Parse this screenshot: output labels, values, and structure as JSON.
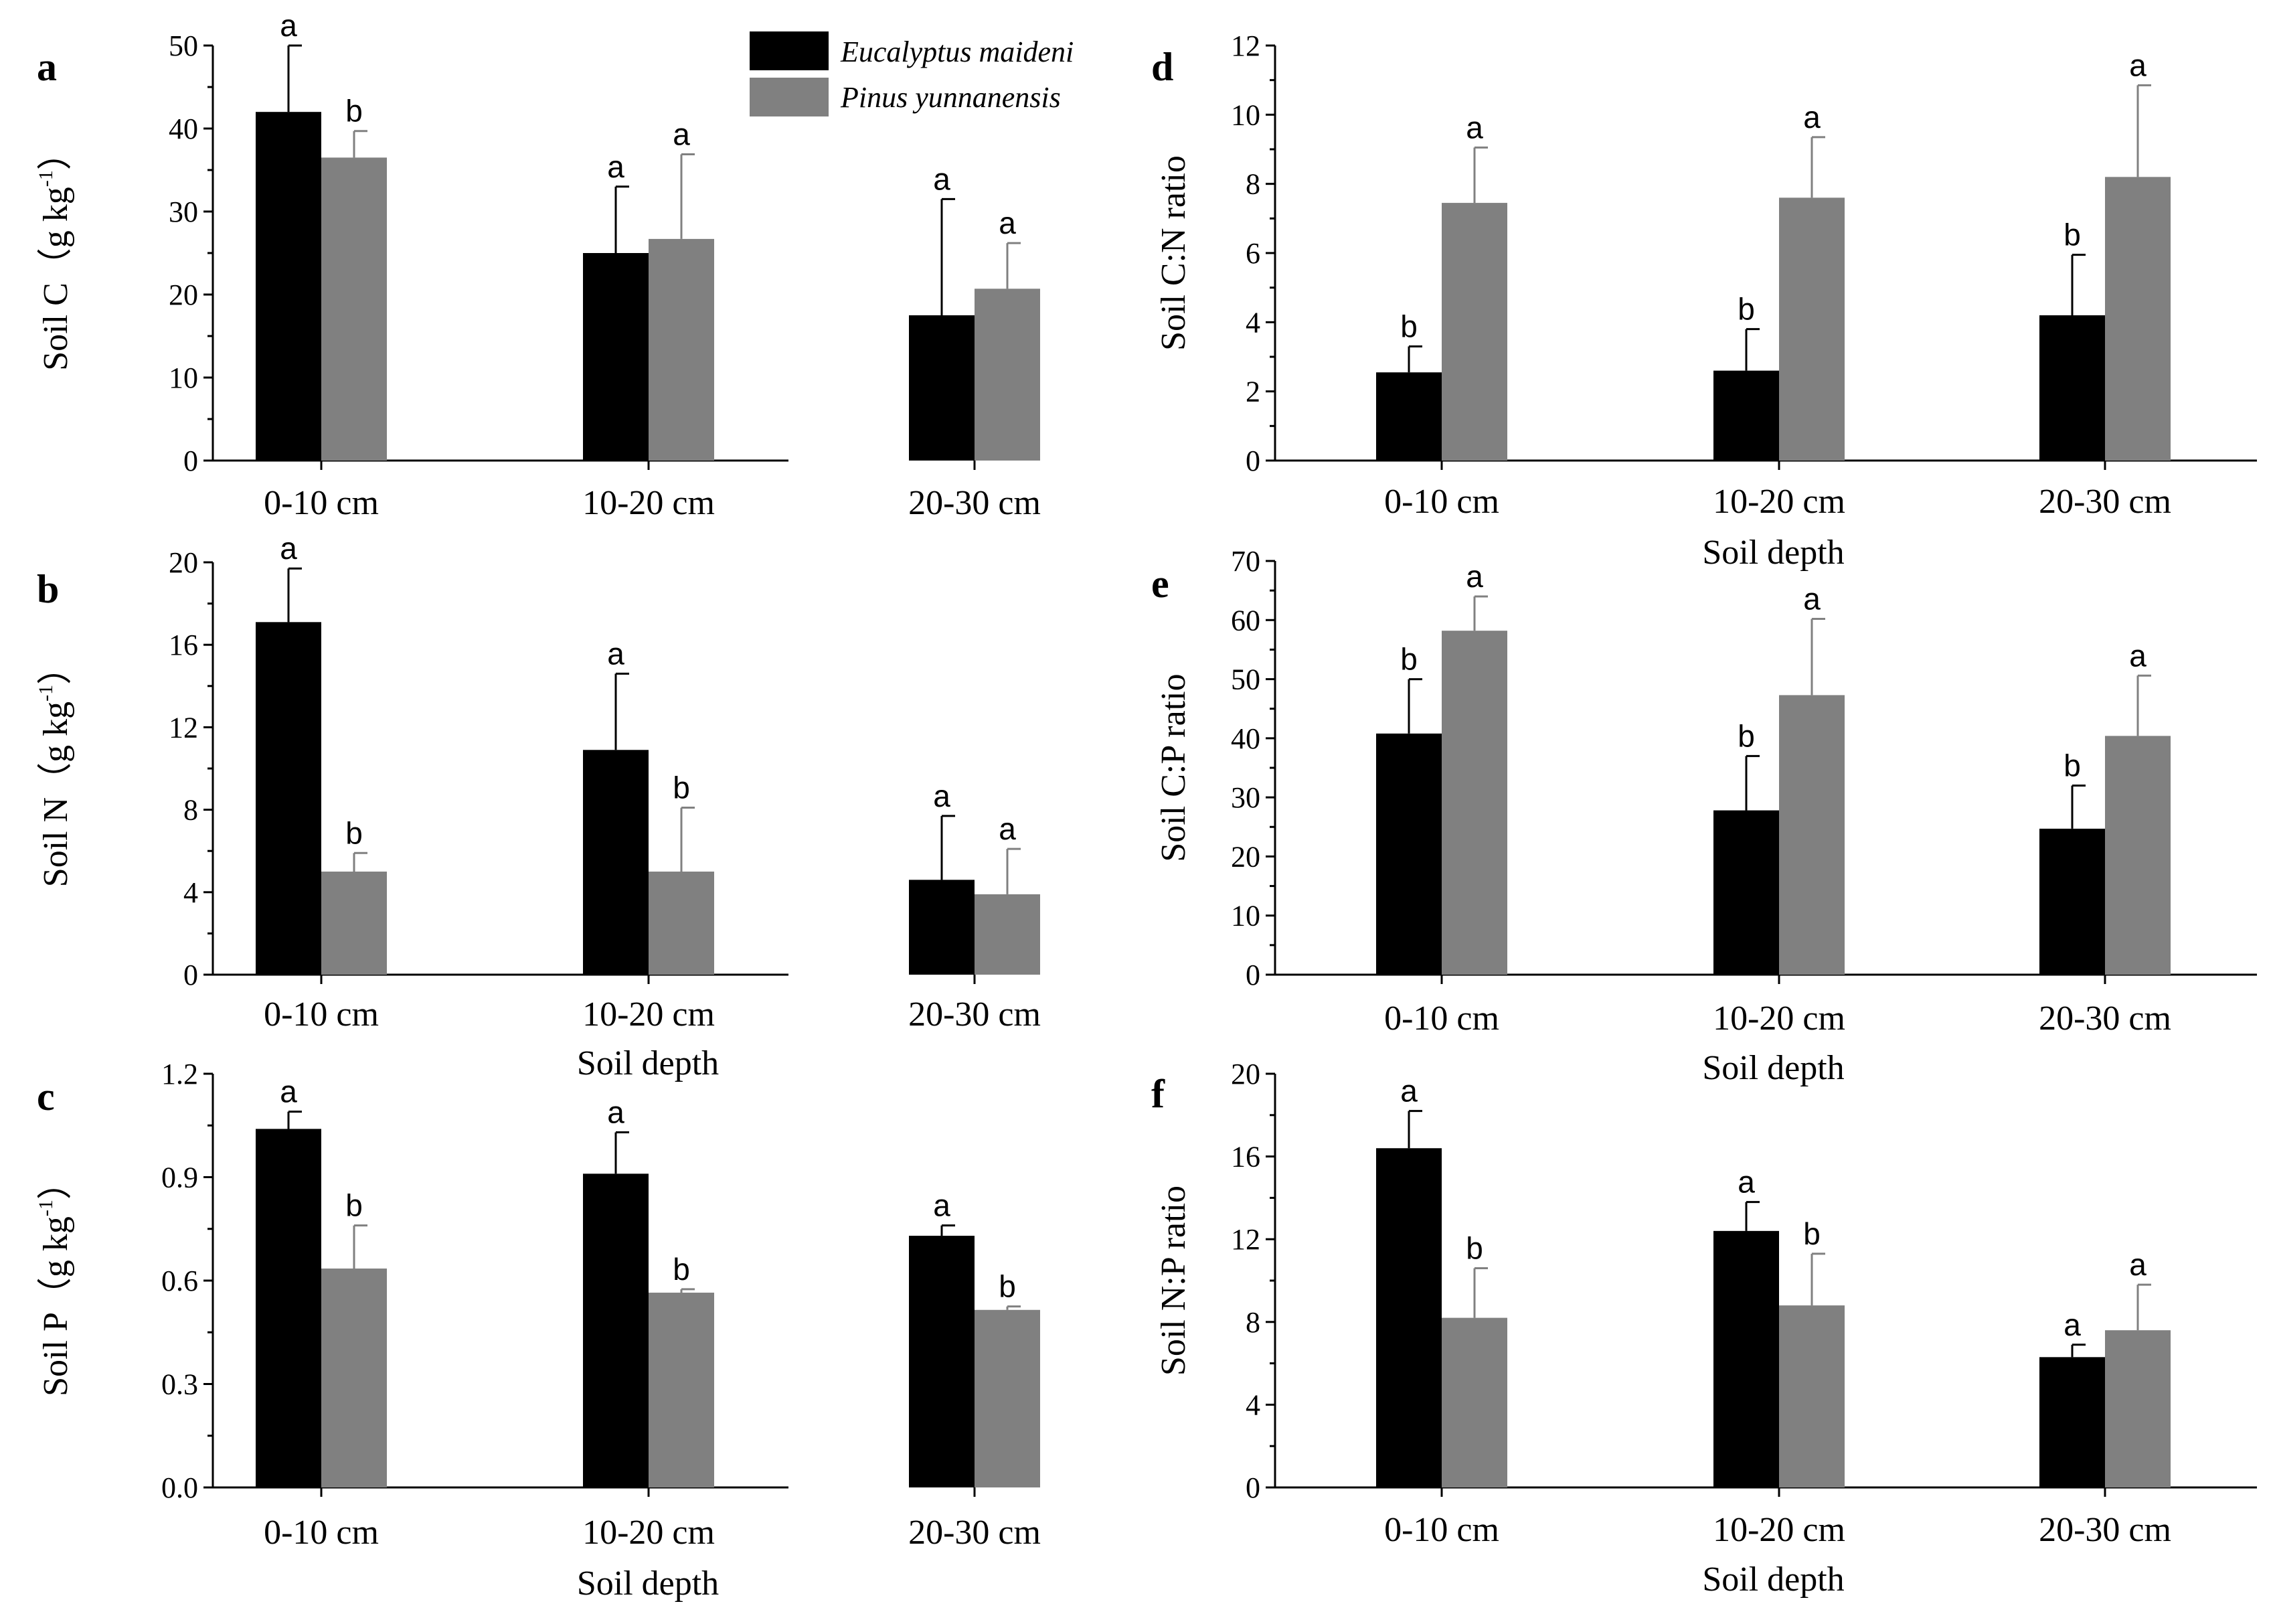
{
  "figure": {
    "legend": [
      {
        "name": "Eucalyptus maideni",
        "color": "#000000"
      },
      {
        "name": "Pinus yunnanensis",
        "color": "#808080"
      }
    ]
  },
  "chart_data": [
    {
      "panel_label": "a",
      "type": "bar",
      "ylabel_main": "Soil C（g kg",
      "ylabel_sup": "-1",
      "ylabel_close": "）",
      "xlabel": "",
      "categories": [
        "0-10 cm",
        "10-20 cm",
        "20-30 cm"
      ],
      "ylim": [
        0,
        50
      ],
      "yticks": [
        "0",
        "10",
        "20",
        "30",
        "40",
        "50"
      ],
      "series": [
        {
          "name": "Eucalyptus maideni",
          "color": "#000000",
          "values": [
            42,
            25,
            17.5
          ],
          "errors": [
            8,
            8,
            14
          ],
          "letters": [
            "a",
            "a",
            "a"
          ]
        },
        {
          "name": "Pinus yunnanensis",
          "color": "#808080",
          "values": [
            36.5,
            26.7,
            20.7
          ],
          "errors": [
            3.2,
            10.2,
            5.5
          ],
          "letters": [
            "b",
            "a",
            "a"
          ]
        }
      ]
    },
    {
      "panel_label": "b",
      "type": "bar",
      "ylabel_main": "Soil N（g kg",
      "ylabel_sup": "-1",
      "ylabel_close": "）",
      "xlabel": "Soil depth",
      "categories": [
        "0-10 cm",
        "10-20 cm",
        "20-30 cm"
      ],
      "ylim": [
        0,
        20
      ],
      "yticks": [
        "0",
        "4",
        "8",
        "12",
        "16",
        "20"
      ],
      "series": [
        {
          "name": "Eucalyptus maideni",
          "color": "#000000",
          "values": [
            17.1,
            10.9,
            4.6
          ],
          "errors": [
            2.6,
            3.7,
            3.1
          ],
          "letters": [
            "a",
            "a",
            "a"
          ]
        },
        {
          "name": "Pinus yunnanensis",
          "color": "#808080",
          "values": [
            5,
            5,
            3.9
          ],
          "errors": [
            0.9,
            3.1,
            2.2
          ],
          "letters": [
            "b",
            "b",
            "a"
          ]
        }
      ]
    },
    {
      "panel_label": "c",
      "type": "bar",
      "ylabel_main": "Soil P（g kg",
      "ylabel_sup": "-1",
      "ylabel_close": "）",
      "xlabel": "Soil depth",
      "categories": [
        "0-10 cm",
        "10-20 cm",
        "20-30 cm"
      ],
      "ylim": [
        0,
        1.2
      ],
      "yticks": [
        "0.0",
        "0.3",
        "0.6",
        "0.9",
        "1.2"
      ],
      "series": [
        {
          "name": "Eucalyptus maideni",
          "color": "#000000",
          "values": [
            1.04,
            0.91,
            0.73
          ],
          "errors": [
            0.05,
            0.12,
            0.03
          ],
          "letters": [
            "a",
            "a",
            "a"
          ]
        },
        {
          "name": "Pinus yunnanensis",
          "color": "#808080",
          "values": [
            0.635,
            0.565,
            0.515
          ],
          "errors": [
            0.125,
            0.01,
            0.01
          ],
          "letters": [
            "b",
            "b",
            "b"
          ]
        }
      ]
    },
    {
      "panel_label": "d",
      "type": "bar",
      "ylabel_main": "Soil C:N ratio",
      "ylabel_sup": "",
      "ylabel_close": "",
      "xlabel": "Soil depth",
      "categories": [
        "0-10 cm",
        "10-20 cm",
        "20-30 cm"
      ],
      "ylim": [
        0,
        12
      ],
      "yticks": [
        "0",
        "2",
        "4",
        "6",
        "8",
        "10",
        "12"
      ],
      "series": [
        {
          "name": "Eucalyptus maideni",
          "color": "#000000",
          "values": [
            2.55,
            2.6,
            4.2
          ],
          "errors": [
            0.75,
            1.2,
            1.75
          ],
          "letters": [
            "b",
            "b",
            "b"
          ]
        },
        {
          "name": "Pinus yunnanensis",
          "color": "#808080",
          "values": [
            7.45,
            7.6,
            8.2
          ],
          "errors": [
            1.6,
            1.75,
            2.65
          ],
          "letters": [
            "a",
            "a",
            "a"
          ]
        }
      ]
    },
    {
      "panel_label": "e",
      "type": "bar",
      "ylabel_main": "Soil C:P ratio",
      "ylabel_sup": "",
      "ylabel_close": "",
      "xlabel": "Soil depth",
      "categories": [
        "0-10 cm",
        "10-20 cm",
        "20-30 cm"
      ],
      "ylim": [
        0,
        70
      ],
      "yticks": [
        "0",
        "10",
        "20",
        "30",
        "40",
        "50",
        "60",
        "70"
      ],
      "series": [
        {
          "name": "Eucalyptus maideni",
          "color": "#000000",
          "values": [
            40.8,
            27.8,
            24.7
          ],
          "errors": [
            9.2,
            9.2,
            7.3
          ],
          "letters": [
            "b",
            "b",
            "b"
          ]
        },
        {
          "name": "Pinus yunnanensis",
          "color": "#808080",
          "values": [
            58.2,
            47.3,
            40.4
          ],
          "errors": [
            5.8,
            12.9,
            10.2
          ],
          "letters": [
            "a",
            "a",
            "a"
          ]
        }
      ]
    },
    {
      "panel_label": "f",
      "type": "bar",
      "ylabel_main": "Soil N:P ratio",
      "ylabel_sup": "",
      "ylabel_close": "",
      "xlabel": "Soil depth",
      "categories": [
        "0-10 cm",
        "10-20 cm",
        "20-30 cm"
      ],
      "ylim": [
        0,
        20
      ],
      "yticks": [
        "0",
        "4",
        "8",
        "12",
        "16",
        "20"
      ],
      "series": [
        {
          "name": "Eucalyptus maideni",
          "color": "#000000",
          "values": [
            16.4,
            12.4,
            6.3
          ],
          "errors": [
            1.8,
            1.4,
            0.6
          ],
          "letters": [
            "a",
            "a",
            "a"
          ]
        },
        {
          "name": "Pinus yunnanensis",
          "color": "#808080",
          "values": [
            8.2,
            8.8,
            7.6
          ],
          "errors": [
            2.4,
            2.5,
            2.2
          ],
          "letters": [
            "b",
            "b",
            "a"
          ]
        }
      ]
    }
  ]
}
